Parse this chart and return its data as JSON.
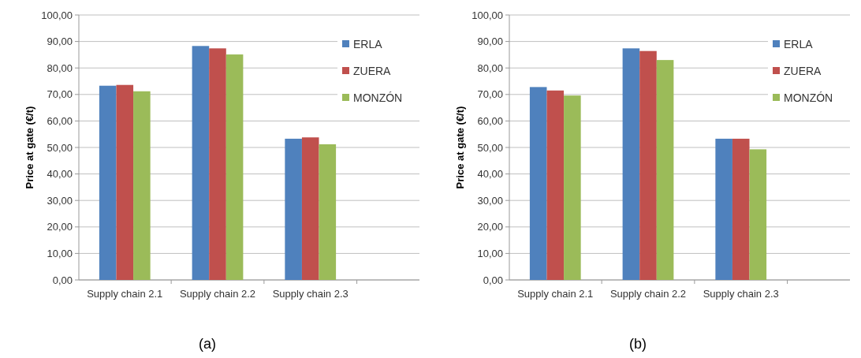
{
  "chart_data": [
    {
      "type": "bar",
      "ylabel": "Price at gate (€/t)",
      "categories": [
        "Supply chain 2.1",
        "Supply chain 2.2",
        "Supply chain 2.3"
      ],
      "series": [
        {
          "name": "ERLA",
          "color": "#4f81bd",
          "values": [
            73.3,
            88.3,
            53.3
          ]
        },
        {
          "name": "ZUERA",
          "color": "#c0504d",
          "values": [
            73.6,
            87.4,
            53.8
          ]
        },
        {
          "name": "MONZÓN",
          "color": "#9bbb59",
          "values": [
            71.2,
            85.1,
            51.2
          ]
        }
      ],
      "ylim": [
        0,
        100
      ],
      "yticks": [
        {
          "value": 0,
          "label": "0,00"
        },
        {
          "value": 10,
          "label": "10,00"
        },
        {
          "value": 20,
          "label": "20,00"
        },
        {
          "value": 30,
          "label": "30,00"
        },
        {
          "value": 40,
          "label": "40,00"
        },
        {
          "value": 50,
          "label": "50,00"
        },
        {
          "value": 60,
          "label": "60,00"
        },
        {
          "value": 70,
          "label": "70,00"
        },
        {
          "value": 80,
          "label": "80,00"
        },
        {
          "value": 90,
          "label": "90,00"
        },
        {
          "value": 100,
          "label": "100,00"
        }
      ],
      "grid": "y",
      "legend": "top right",
      "annotations": [
        "(a)"
      ]
    },
    {
      "type": "bar",
      "ylabel": "Price at gate (€/t)",
      "categories": [
        "Supply chain 2.1",
        "Supply chain 2.2",
        "Supply chain 2.3"
      ],
      "series": [
        {
          "name": "ERLA",
          "color": "#4f81bd",
          "values": [
            72.8,
            87.4,
            53.3
          ]
        },
        {
          "name": "ZUERA",
          "color": "#c0504d",
          "values": [
            71.5,
            86.4,
            53.3
          ]
        },
        {
          "name": "MONZÓN",
          "color": "#9bbb59",
          "values": [
            69.6,
            83.0,
            49.3
          ]
        }
      ],
      "ylim": [
        0,
        100
      ],
      "yticks": [
        {
          "value": 0,
          "label": "0,00"
        },
        {
          "value": 10,
          "label": "10,00"
        },
        {
          "value": 20,
          "label": "20,00"
        },
        {
          "value": 30,
          "label": "30,00"
        },
        {
          "value": 40,
          "label": "40,00"
        },
        {
          "value": 50,
          "label": "50,00"
        },
        {
          "value": 60,
          "label": "60,00"
        },
        {
          "value": 70,
          "label": "70,00"
        },
        {
          "value": 80,
          "label": "80,00"
        },
        {
          "value": 90,
          "label": "90,00"
        },
        {
          "value": 100,
          "label": "100,00"
        }
      ],
      "grid": "y",
      "legend": "top right",
      "annotations": [
        "(b)"
      ]
    }
  ]
}
